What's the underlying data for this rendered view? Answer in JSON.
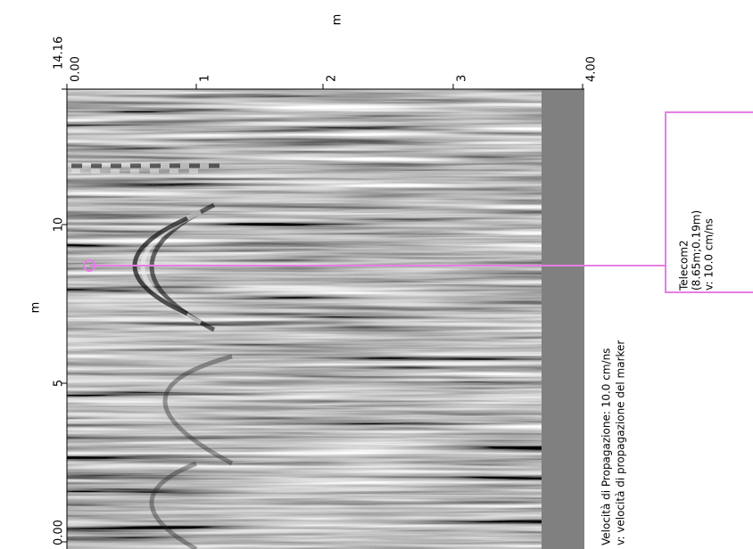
{
  "axes": {
    "top": {
      "label": "m",
      "ticks": [
        "0.00",
        "1",
        "2",
        "3",
        "4.00"
      ]
    },
    "left": {
      "label": "m",
      "ticks": [
        "14.16",
        "10",
        "5",
        "0.00"
      ]
    }
  },
  "marker": {
    "name": "Telecom2",
    "position": "(8.65m;0.19m)",
    "velocity": "v: 10.0 cm/ns"
  },
  "legend": {
    "line1": "Velocità di Propagazione:  10.0 cm/ns",
    "line2": "v: velocità di propagazione del marker"
  }
}
